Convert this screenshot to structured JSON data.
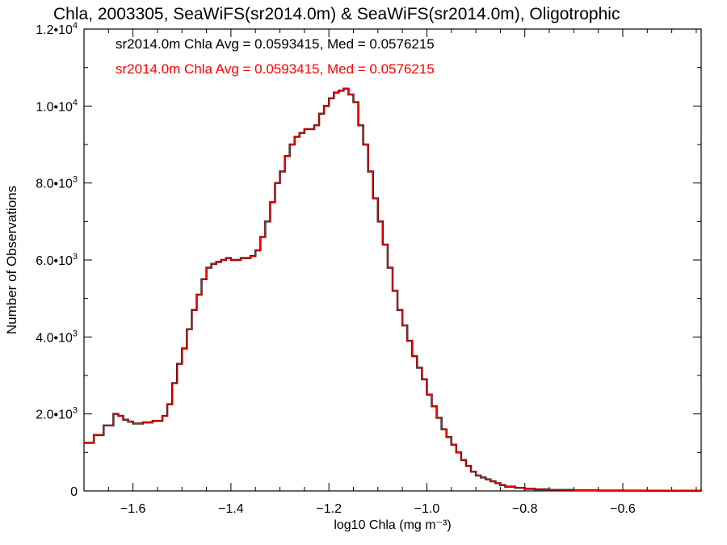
{
  "chart_data": {
    "type": "line",
    "title": "Chla, 2003305, SeaWiFS(sr2014.0m) & SeaWiFS(sr2014.0m), Oligotrophic",
    "xlabel": "log10 Chla (mg m⁻³)",
    "ylabel": "Number of Observations",
    "xlim": [
      -1.7,
      -0.44
    ],
    "ylim": [
      0,
      12000
    ],
    "x_ticks": [
      -1.6,
      -1.4,
      -1.2,
      -1.0,
      -0.8,
      -0.6
    ],
    "x_tick_labels": [
      "−1.6",
      "−1.4",
      "−1.2",
      "−1.0",
      "−0.8",
      "−0.6"
    ],
    "y_ticks": [
      0,
      2000,
      4000,
      6000,
      8000,
      10000,
      12000
    ],
    "y_tick_labels": [
      {
        "mantissa": "0",
        "exp": ""
      },
      {
        "mantissa": "2.0•10",
        "exp": "3"
      },
      {
        "mantissa": "4.0•10",
        "exp": "3"
      },
      {
        "mantissa": "6.0•10",
        "exp": "3"
      },
      {
        "mantissa": "8.0•10",
        "exp": "3"
      },
      {
        "mantissa": "1.0•10",
        "exp": "4"
      },
      {
        "mantissa": "1.2•10",
        "exp": "4"
      }
    ],
    "grid": false,
    "series": [
      {
        "name": "sr2014.0m Chla Avg = 0.0593415, Med = 0.0576215",
        "color": "#000000",
        "width": 2.4,
        "x": [
          -1.7,
          -1.68,
          -1.66,
          -1.64,
          -1.63,
          -1.62,
          -1.61,
          -1.6,
          -1.58,
          -1.56,
          -1.54,
          -1.53,
          -1.52,
          -1.51,
          -1.5,
          -1.49,
          -1.48,
          -1.47,
          -1.46,
          -1.45,
          -1.44,
          -1.43,
          -1.42,
          -1.41,
          -1.4,
          -1.38,
          -1.36,
          -1.35,
          -1.34,
          -1.33,
          -1.32,
          -1.31,
          -1.3,
          -1.29,
          -1.28,
          -1.27,
          -1.26,
          -1.25,
          -1.24,
          -1.23,
          -1.22,
          -1.21,
          -1.2,
          -1.19,
          -1.18,
          -1.17,
          -1.16,
          -1.15,
          -1.14,
          -1.13,
          -1.12,
          -1.11,
          -1.1,
          -1.09,
          -1.08,
          -1.07,
          -1.06,
          -1.05,
          -1.04,
          -1.03,
          -1.02,
          -1.01,
          -1.0,
          -0.99,
          -0.98,
          -0.97,
          -0.96,
          -0.95,
          -0.94,
          -0.93,
          -0.92,
          -0.91,
          -0.9,
          -0.89,
          -0.88,
          -0.87,
          -0.86,
          -0.85,
          -0.84,
          -0.82,
          -0.8,
          -0.78,
          -0.75,
          -0.7,
          -0.65,
          -0.6,
          -0.55,
          -0.5,
          -0.44
        ],
        "y": [
          1250,
          1450,
          1700,
          2000,
          1950,
          1850,
          1800,
          1750,
          1780,
          1820,
          1950,
          2250,
          2800,
          3300,
          3700,
          4200,
          4700,
          5100,
          5500,
          5800,
          5900,
          5950,
          6000,
          6050,
          6000,
          6050,
          6100,
          6250,
          6600,
          7000,
          7500,
          8000,
          8300,
          8700,
          9000,
          9200,
          9300,
          9400,
          9400,
          9500,
          9800,
          10000,
          10200,
          10350,
          10400,
          10450,
          10300,
          10100,
          9500,
          9000,
          8300,
          7600,
          7000,
          6400,
          5800,
          5200,
          4700,
          4300,
          3900,
          3500,
          3200,
          2900,
          2500,
          2200,
          1900,
          1600,
          1400,
          1200,
          1000,
          800,
          650,
          500,
          400,
          350,
          300,
          250,
          200,
          150,
          110,
          80,
          55,
          40,
          25,
          15,
          10,
          6,
          4,
          3,
          2
        ]
      },
      {
        "name": "sr2014.0m Chla Avg = 0.0593415, Med = 0.0576215",
        "color": "#ff0000",
        "width": 1.4,
        "x": [
          -1.7,
          -1.68,
          -1.66,
          -1.64,
          -1.63,
          -1.62,
          -1.61,
          -1.6,
          -1.58,
          -1.56,
          -1.54,
          -1.53,
          -1.52,
          -1.51,
          -1.5,
          -1.49,
          -1.48,
          -1.47,
          -1.46,
          -1.45,
          -1.44,
          -1.43,
          -1.42,
          -1.41,
          -1.4,
          -1.38,
          -1.36,
          -1.35,
          -1.34,
          -1.33,
          -1.32,
          -1.31,
          -1.3,
          -1.29,
          -1.28,
          -1.27,
          -1.26,
          -1.25,
          -1.24,
          -1.23,
          -1.22,
          -1.21,
          -1.2,
          -1.19,
          -1.18,
          -1.17,
          -1.16,
          -1.15,
          -1.14,
          -1.13,
          -1.12,
          -1.11,
          -1.1,
          -1.09,
          -1.08,
          -1.07,
          -1.06,
          -1.05,
          -1.04,
          -1.03,
          -1.02,
          -1.01,
          -1.0,
          -0.99,
          -0.98,
          -0.97,
          -0.96,
          -0.95,
          -0.94,
          -0.93,
          -0.92,
          -0.91,
          -0.9,
          -0.89,
          -0.88,
          -0.87,
          -0.86,
          -0.85,
          -0.84,
          -0.82,
          -0.8,
          -0.78,
          -0.75,
          -0.7,
          -0.65,
          -0.6,
          -0.55,
          -0.5,
          -0.44
        ],
        "y": [
          1250,
          1450,
          1700,
          2000,
          1950,
          1850,
          1800,
          1750,
          1780,
          1820,
          1950,
          2250,
          2800,
          3300,
          3700,
          4200,
          4700,
          5100,
          5500,
          5800,
          5900,
          5950,
          6000,
          6050,
          6000,
          6050,
          6100,
          6250,
          6600,
          7000,
          7500,
          8000,
          8300,
          8700,
          9000,
          9200,
          9300,
          9400,
          9400,
          9500,
          9800,
          10000,
          10200,
          10350,
          10400,
          10450,
          10300,
          10100,
          9500,
          9000,
          8300,
          7600,
          7000,
          6400,
          5800,
          5200,
          4700,
          4300,
          3900,
          3500,
          3200,
          2900,
          2500,
          2200,
          1900,
          1600,
          1400,
          1200,
          1000,
          800,
          650,
          500,
          400,
          350,
          300,
          250,
          200,
          150,
          110,
          80,
          55,
          40,
          25,
          15,
          10,
          6,
          4,
          3,
          2
        ]
      }
    ],
    "annotations": [
      {
        "text": "sr2014.0m Chla Avg = 0.0593415, Med = 0.0576215",
        "color": "#000000"
      },
      {
        "text": "sr2014.0m Chla Avg = 0.0593415, Med = 0.0576215",
        "color": "#ff0000"
      }
    ]
  }
}
